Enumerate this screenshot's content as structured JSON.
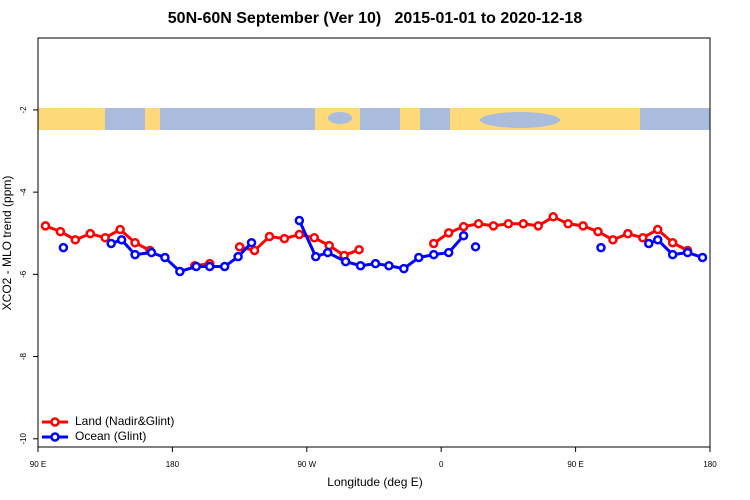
{
  "chart_data": {
    "type": "line",
    "title": "50N-60N September (Ver 10)   2015-01-01 to 2020-12-18",
    "x_label": "Longitude (deg E)",
    "y_label": "XCO2 - MLO trend (ppm)",
    "xlim": [
      90,
      540
    ],
    "ylim": [
      -10.2,
      -0.25
    ],
    "xticks": [
      {
        "value": 90,
        "label": "90 E"
      },
      {
        "value": 180,
        "label": "180"
      },
      {
        "value": 270,
        "label": "90 W"
      },
      {
        "value": 360,
        "label": "0"
      },
      {
        "value": 450,
        "label": "90 E"
      },
      {
        "value": 540,
        "label": "180"
      }
    ],
    "yticks": [
      -10,
      -8,
      -6,
      -4,
      -2
    ],
    "legend": "bottom-left",
    "series": [
      {
        "name": "Land (Nadir&Glint)",
        "color": "#ff0000",
        "x": [
          95,
          105,
          115,
          125,
          135,
          145,
          155,
          165,
          175,
          185,
          195,
          205,
          215,
          225,
          235,
          245,
          255,
          265,
          275,
          285,
          295,
          305,
          315,
          325,
          335,
          345,
          355,
          365,
          375,
          385,
          395,
          405,
          415,
          425,
          435,
          445,
          455,
          465,
          475,
          485,
          495,
          505,
          515,
          525
        ],
        "values": [
          -4.82,
          -4.96,
          -5.16,
          -5.01,
          -5.11,
          -4.91,
          -5.23,
          -5.42,
          null,
          null,
          -5.79,
          -5.74,
          null,
          -5.33,
          -5.42,
          -5.08,
          -5.13,
          -5.03,
          -5.11,
          -5.3,
          -5.54,
          -5.4,
          null,
          null,
          null,
          null,
          -5.25,
          -4.99,
          -4.84,
          -4.77,
          -4.82,
          -4.77,
          -4.77,
          -4.82,
          -4.6,
          -4.77,
          -4.82,
          -4.96,
          -5.16,
          -5.01,
          -5.11,
          -4.91,
          -5.23,
          -5.42
        ]
      },
      {
        "name": "Ocean (Glint)",
        "color": "#0000ff",
        "x": [
          107,
          120,
          139,
          146,
          155,
          166,
          175,
          185,
          196,
          205,
          215,
          224,
          233,
          250,
          265,
          276,
          284,
          296,
          306,
          316,
          325,
          335,
          345,
          355,
          365,
          375,
          380,
          383,
          450,
          467,
          480,
          499,
          505,
          515,
          525,
          535
        ],
        "values": [
          -5.35,
          null,
          -5.25,
          -5.16,
          -5.52,
          -5.47,
          -5.59,
          -5.93,
          -5.81,
          -5.81,
          -5.81,
          -5.57,
          -5.23,
          null,
          -4.69,
          -5.57,
          -5.47,
          -5.69,
          -5.79,
          -5.74,
          -5.79,
          -5.86,
          -5.59,
          -5.52,
          -5.47,
          -5.06,
          null,
          -5.33,
          null,
          -5.35,
          null,
          -5.25,
          -5.16,
          -5.52,
          -5.47,
          -5.59
        ]
      }
    ]
  }
}
